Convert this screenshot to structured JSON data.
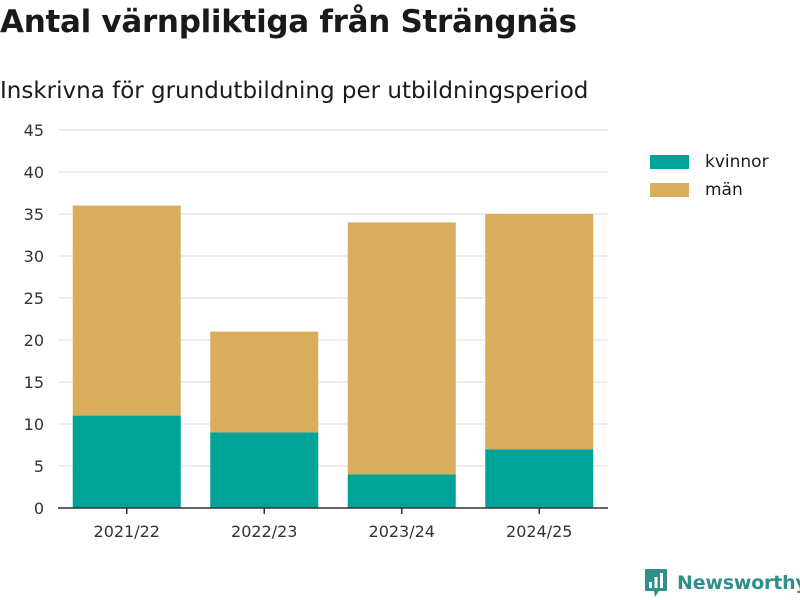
{
  "header": {
    "title": "Antal värnpliktiga från Strängnäs",
    "subtitle": "Inskrivna för grundutbildning per utbildningsperiod"
  },
  "chart_data": {
    "type": "bar",
    "stacked": true,
    "title": "Antal värnpliktiga från Strängnäs",
    "subtitle": "Inskrivna för grundutbildning per utbildningsperiod",
    "xlabel": "",
    "ylabel": "",
    "ylim": [
      0,
      45
    ],
    "yticks": [
      "0",
      "5",
      "10",
      "15",
      "20",
      "25",
      "30",
      "35",
      "40",
      "45"
    ],
    "grid": true,
    "legend_position": "top-right",
    "categories": [
      "2021/22",
      "2022/23",
      "2023/24",
      "2024/25"
    ],
    "series": [
      {
        "name": "kvinnor",
        "color": "#00a398",
        "values": [
          11,
          9,
          4,
          7
        ]
      },
      {
        "name": "män",
        "color": "#d8ad5b",
        "values": [
          25,
          12,
          30,
          28
        ]
      }
    ]
  },
  "legend": {
    "items": [
      {
        "label": "kvinnor",
        "color": "#00a398"
      },
      {
        "label": "män",
        "color": "#d8ad5b"
      }
    ]
  },
  "footer": {
    "brand": "Newsworthy",
    "brand_color": "#2f8f8b",
    "brand_icon": "newsworthy-logo-icon"
  }
}
